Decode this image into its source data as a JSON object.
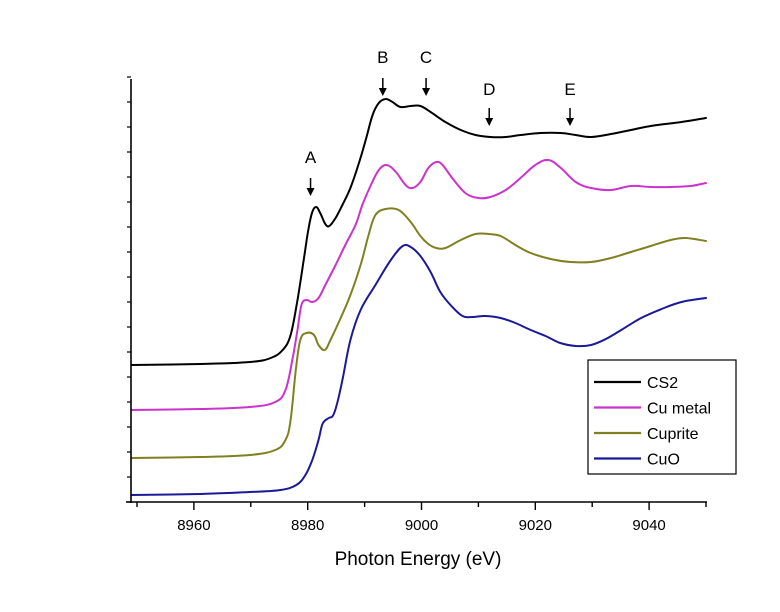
{
  "chart_data": {
    "type": "line",
    "title": "",
    "xlabel": "Photon Energy (eV)",
    "ylabel": "",
    "xlim": [
      8950,
      9050
    ],
    "ylim": [
      0,
      1.7
    ],
    "x_ticks": [
      8960,
      8980,
      9000,
      9020,
      9040
    ],
    "x_minor_ticks": [
      8950,
      8970,
      8990,
      9010,
      9030,
      9050
    ],
    "y_tick_labels_shown": false,
    "grid": false,
    "legend": {
      "position": "bottom-right",
      "entries": [
        "CS2",
        "Cu metal",
        "Cuprite",
        "CuO"
      ]
    },
    "annotations": [
      {
        "label": "A",
        "x": 8980.5,
        "series": "CS2"
      },
      {
        "label": "B",
        "x": 8993.2,
        "series": "CS2"
      },
      {
        "label": "C",
        "x": 9000.8,
        "series": "CS2"
      },
      {
        "label": "D",
        "x": 9011.9,
        "series": "CS2"
      },
      {
        "label": "E",
        "x": 9026.1,
        "series": "CS2"
      }
    ],
    "series": [
      {
        "name": "CS2",
        "color": "#000000",
        "points": [
          [
            8949,
            0.548
          ],
          [
            8961.1,
            0.552
          ],
          [
            8969.9,
            0.56
          ],
          [
            8973.5,
            0.576
          ],
          [
            8975.6,
            0.608
          ],
          [
            8977,
            0.668
          ],
          [
            8978.2,
            0.808
          ],
          [
            8979.3,
            0.968
          ],
          [
            8980.1,
            1.088
          ],
          [
            8980.8,
            1.16
          ],
          [
            8981.5,
            1.18
          ],
          [
            8982.2,
            1.156
          ],
          [
            8983.1,
            1.112
          ],
          [
            8983.8,
            1.104
          ],
          [
            8984.9,
            1.136
          ],
          [
            8986.1,
            1.188
          ],
          [
            8987.5,
            1.256
          ],
          [
            8988.9,
            1.348
          ],
          [
            8990.2,
            1.448
          ],
          [
            8991.4,
            1.548
          ],
          [
            8992.5,
            1.596
          ],
          [
            8993.7,
            1.612
          ],
          [
            8994.9,
            1.6
          ],
          [
            8996.3,
            1.58
          ],
          [
            8998.1,
            1.584
          ],
          [
            8999.8,
            1.584
          ],
          [
            9001.6,
            1.56
          ],
          [
            9004.2,
            1.52
          ],
          [
            9006.9,
            1.488
          ],
          [
            9009.5,
            1.468
          ],
          [
            9012.1,
            1.46
          ],
          [
            9014.8,
            1.46
          ],
          [
            9017.4,
            1.468
          ],
          [
            9020.9,
            1.476
          ],
          [
            9024.5,
            1.476
          ],
          [
            9027.1,
            1.468
          ],
          [
            9029.8,
            1.46
          ],
          [
            9033.3,
            1.472
          ],
          [
            9036.8,
            1.488
          ],
          [
            9040.3,
            1.504
          ],
          [
            9045.7,
            1.52
          ],
          [
            9050,
            1.536
          ]
        ]
      },
      {
        "name": "Cu metal",
        "color": "#cc33cc",
        "points": [
          [
            8949,
            0.368
          ],
          [
            8961.1,
            0.372
          ],
          [
            8969.9,
            0.38
          ],
          [
            8974.3,
            0.4
          ],
          [
            8976.1,
            0.448
          ],
          [
            8977.3,
            0.568
          ],
          [
            8978.2,
            0.688
          ],
          [
            8978.9,
            0.788
          ],
          [
            8979.8,
            0.808
          ],
          [
            8980.8,
            0.8
          ],
          [
            8981.9,
            0.816
          ],
          [
            8983.1,
            0.868
          ],
          [
            8984.9,
            0.948
          ],
          [
            8986.6,
            1.028
          ],
          [
            8988.4,
            1.108
          ],
          [
            8989.6,
            1.188
          ],
          [
            8991.1,
            1.268
          ],
          [
            8992.5,
            1.328
          ],
          [
            8993.9,
            1.348
          ],
          [
            8995.5,
            1.32
          ],
          [
            8997.2,
            1.268
          ],
          [
            8998.4,
            1.256
          ],
          [
            8999.8,
            1.28
          ],
          [
            9001.2,
            1.336
          ],
          [
            9002.6,
            1.36
          ],
          [
            9003.7,
            1.348
          ],
          [
            9005.4,
            1.296
          ],
          [
            9007.7,
            1.236
          ],
          [
            9010,
            1.216
          ],
          [
            9012.1,
            1.22
          ],
          [
            9014.8,
            1.248
          ],
          [
            9017.4,
            1.296
          ],
          [
            9020,
            1.348
          ],
          [
            9022.3,
            1.368
          ],
          [
            9024.5,
            1.336
          ],
          [
            9027.1,
            1.28
          ],
          [
            9029.8,
            1.256
          ],
          [
            9033.3,
            1.248
          ],
          [
            9036.8,
            1.264
          ],
          [
            9040.3,
            1.26
          ],
          [
            9043.8,
            1.26
          ],
          [
            9047.3,
            1.264
          ],
          [
            9050,
            1.276
          ]
        ]
      },
      {
        "name": "Cuprite",
        "color": "#808020",
        "points": [
          [
            8949,
            0.176
          ],
          [
            8961.1,
            0.18
          ],
          [
            8969.9,
            0.188
          ],
          [
            8974.3,
            0.208
          ],
          [
            8976.1,
            0.248
          ],
          [
            8977,
            0.328
          ],
          [
            8977.9,
            0.528
          ],
          [
            8978.7,
            0.648
          ],
          [
            8979.8,
            0.676
          ],
          [
            8981.1,
            0.668
          ],
          [
            8981.9,
            0.628
          ],
          [
            8983,
            0.608
          ],
          [
            8984,
            0.648
          ],
          [
            8985.8,
            0.736
          ],
          [
            8987.5,
            0.828
          ],
          [
            8989.3,
            0.948
          ],
          [
            8990.7,
            1.068
          ],
          [
            8991.9,
            1.148
          ],
          [
            8993.7,
            1.172
          ],
          [
            8996,
            1.168
          ],
          [
            8998.1,
            1.12
          ],
          [
            8999.8,
            1.064
          ],
          [
            9001.2,
            1.032
          ],
          [
            9002.6,
            1.016
          ],
          [
            9004.2,
            1.016
          ],
          [
            9006.9,
            1.048
          ],
          [
            9009.5,
            1.072
          ],
          [
            9011.8,
            1.072
          ],
          [
            9013.9,
            1.064
          ],
          [
            9016.5,
            1.028
          ],
          [
            9019.2,
            0.996
          ],
          [
            9022.7,
            0.972
          ],
          [
            9026.2,
            0.96
          ],
          [
            9029.8,
            0.96
          ],
          [
            9033.3,
            0.976
          ],
          [
            9036.8,
            1
          ],
          [
            9040.3,
            1.024
          ],
          [
            9043.8,
            1.048
          ],
          [
            9046.4,
            1.056
          ],
          [
            9050,
            1.044
          ]
        ]
      },
      {
        "name": "CuO",
        "color": "#1a1a99",
        "points": [
          [
            8949,
            0.028
          ],
          [
            8961.1,
            0.032
          ],
          [
            8969.9,
            0.04
          ],
          [
            8975.2,
            0.048
          ],
          [
            8978,
            0.068
          ],
          [
            8979.6,
            0.108
          ],
          [
            8980.8,
            0.168
          ],
          [
            8981.9,
            0.248
          ],
          [
            8982.6,
            0.312
          ],
          [
            8983.7,
            0.336
          ],
          [
            8984.4,
            0.344
          ],
          [
            8985.1,
            0.388
          ],
          [
            8986.1,
            0.488
          ],
          [
            8987.5,
            0.648
          ],
          [
            8989.3,
            0.768
          ],
          [
            8991.9,
            0.868
          ],
          [
            8994.6,
            0.968
          ],
          [
            8996.7,
            1.024
          ],
          [
            8998.1,
            1.02
          ],
          [
            8999.8,
            0.984
          ],
          [
            9001.6,
            0.92
          ],
          [
            9003.3,
            0.84
          ],
          [
            9005.1,
            0.788
          ],
          [
            9007.2,
            0.744
          ],
          [
            9009,
            0.74
          ],
          [
            9011.2,
            0.744
          ],
          [
            9013.9,
            0.736
          ],
          [
            9016.5,
            0.716
          ],
          [
            9019.2,
            0.688
          ],
          [
            9021.8,
            0.664
          ],
          [
            9024.4,
            0.636
          ],
          [
            9027.1,
            0.624
          ],
          [
            9029.8,
            0.628
          ],
          [
            9032.4,
            0.652
          ],
          [
            9035.1,
            0.688
          ],
          [
            9038.6,
            0.736
          ],
          [
            9042.2,
            0.772
          ],
          [
            9045.7,
            0.8
          ],
          [
            9050,
            0.816
          ]
        ]
      }
    ]
  }
}
